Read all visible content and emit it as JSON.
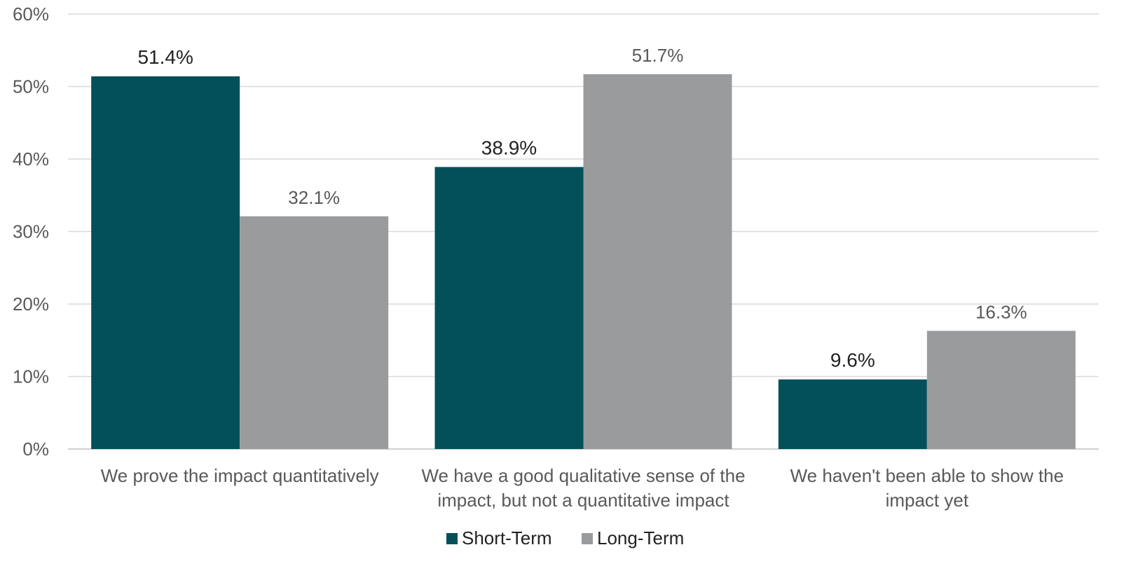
{
  "chart_data": {
    "type": "bar",
    "categories": [
      [
        "We prove the impact quantitatively"
      ],
      [
        "We have a good qualitative sense of the",
        "impact, but not a quantitative impact"
      ],
      [
        "We haven't been able to show the",
        "impact yet"
      ]
    ],
    "series": [
      {
        "name": "Short-Term",
        "color": "#03505a",
        "values": [
          51.4,
          38.9,
          9.6
        ],
        "labels": [
          "51.4%",
          "38.9%",
          "9.6%"
        ]
      },
      {
        "name": "Long-Term",
        "color": "#9a9b9d",
        "values": [
          32.1,
          51.7,
          16.3
        ],
        "labels": [
          "32.1%",
          "51.7%",
          "16.3%"
        ]
      }
    ],
    "ylim": [
      0,
      60
    ],
    "yticks": [
      0,
      10,
      20,
      30,
      40,
      50,
      60
    ],
    "ytick_labels": [
      "0%",
      "10%",
      "20%",
      "30%",
      "40%",
      "50%",
      "60%"
    ],
    "grid": true,
    "legend_position": "bottom-center"
  }
}
